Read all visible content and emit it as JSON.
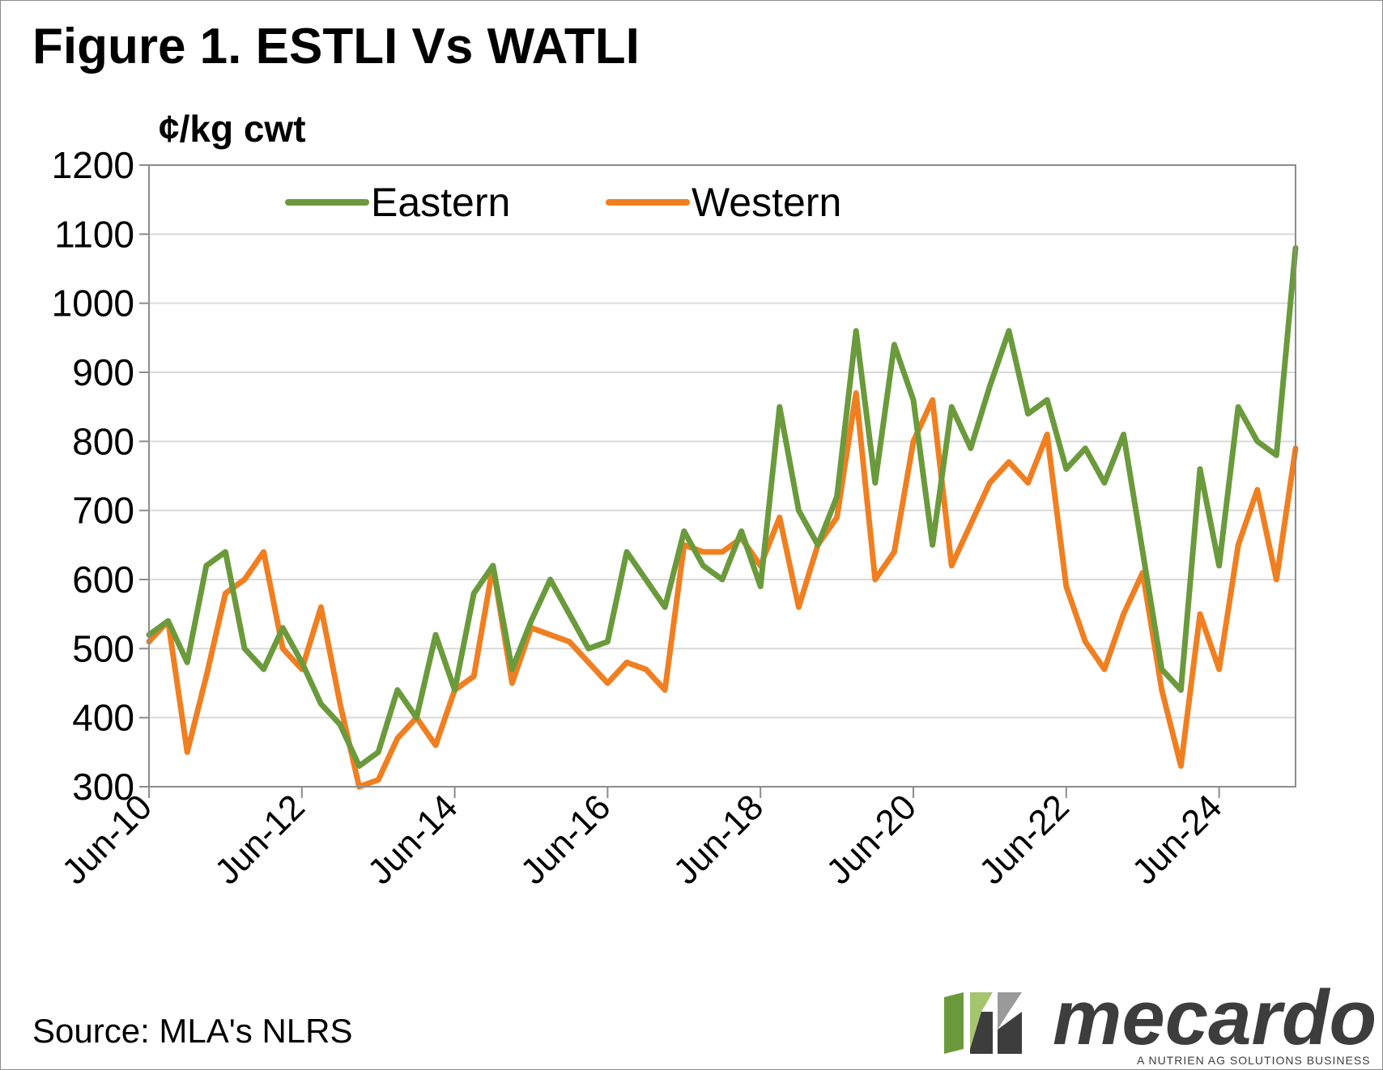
{
  "title": "Figure 1. ESTLI Vs WATLI",
  "unit_label": "¢/kg cwt",
  "source": "Source: MLA's NLRS",
  "logo": {
    "name": "mecardo",
    "tagline": "A NUTRIEN AG SOLUTIONS BUSINESS",
    "colors": [
      "#6b9a3c",
      "#a5c46e",
      "#9a9a9a",
      "#3d3d3d"
    ]
  },
  "chart_data": {
    "type": "line",
    "title": "Figure 1. ESTLI Vs WATLI",
    "ylabel": "¢/kg cwt",
    "xlabel": "",
    "ylim": [
      300,
      1200
    ],
    "yticks": [
      300,
      400,
      500,
      600,
      700,
      800,
      900,
      1000,
      1100,
      1200
    ],
    "xlim": [
      "2010-06",
      "2025-06"
    ],
    "xticks": [
      "Jun-10",
      "Jun-12",
      "Jun-14",
      "Jun-16",
      "Jun-18",
      "Jun-20",
      "Jun-22",
      "Jun-24"
    ],
    "grid": "horizontal",
    "legend": "top-left",
    "x": [
      "2010-06",
      "2010-09",
      "2010-12",
      "2011-03",
      "2011-06",
      "2011-09",
      "2011-12",
      "2012-03",
      "2012-06",
      "2012-09",
      "2012-12",
      "2013-03",
      "2013-06",
      "2013-09",
      "2013-12",
      "2014-03",
      "2014-06",
      "2014-09",
      "2014-12",
      "2015-03",
      "2015-06",
      "2015-09",
      "2015-12",
      "2016-03",
      "2016-06",
      "2016-09",
      "2016-12",
      "2017-03",
      "2017-06",
      "2017-09",
      "2017-12",
      "2018-03",
      "2018-06",
      "2018-09",
      "2018-12",
      "2019-03",
      "2019-06",
      "2019-09",
      "2019-12",
      "2020-03",
      "2020-06",
      "2020-09",
      "2020-12",
      "2021-03",
      "2021-06",
      "2021-09",
      "2021-12",
      "2022-03",
      "2022-06",
      "2022-09",
      "2022-12",
      "2023-03",
      "2023-06",
      "2023-09",
      "2023-12",
      "2024-03",
      "2024-06",
      "2024-09",
      "2024-12",
      "2025-03",
      "2025-06"
    ],
    "series": [
      {
        "name": "Eastern",
        "color": "#6b9a3c",
        "values": [
          520,
          540,
          480,
          620,
          640,
          500,
          470,
          530,
          480,
          420,
          390,
          330,
          350,
          440,
          400,
          520,
          440,
          580,
          620,
          470,
          540,
          600,
          550,
          500,
          510,
          640,
          600,
          560,
          670,
          620,
          600,
          670,
          590,
          850,
          700,
          650,
          720,
          960,
          740,
          940,
          860,
          650,
          850,
          790,
          880,
          960,
          840,
          860,
          760,
          790,
          740,
          810,
          640,
          470,
          440,
          760,
          620,
          850,
          800,
          780,
          1080
        ]
      },
      {
        "name": "Western",
        "color": "#f07f21",
        "values": [
          510,
          540,
          350,
          460,
          580,
          600,
          640,
          500,
          470,
          560,
          420,
          300,
          310,
          370,
          400,
          360,
          440,
          460,
          620,
          450,
          530,
          520,
          510,
          480,
          450,
          480,
          470,
          440,
          650,
          640,
          640,
          660,
          620,
          690,
          560,
          650,
          690,
          870,
          600,
          640,
          800,
          860,
          620,
          680,
          740,
          770,
          740,
          810,
          590,
          510,
          470,
          550,
          610,
          440,
          330,
          550,
          470,
          650,
          730,
          600,
          790
        ]
      }
    ]
  }
}
